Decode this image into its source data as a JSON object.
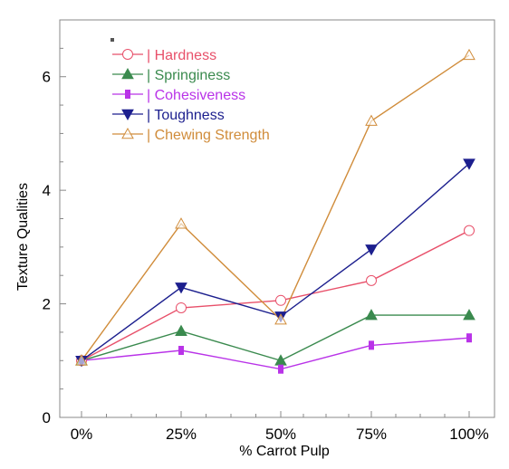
{
  "chart_data": {
    "type": "line",
    "categories": [
      "0%",
      "25%",
      "50%",
      "75%",
      "100%"
    ],
    "xlabel": "% Carrot Pulp",
    "ylabel": "Texture Qualities",
    "ylim": [
      0,
      7.0
    ],
    "yticks": [
      0,
      2,
      4,
      6
    ],
    "grid": false,
    "legend_position": "top-left",
    "series": [
      {
        "name": "| Hardness",
        "values": [
          1.0,
          1.93,
          2.06,
          2.41,
          3.29
        ],
        "color": "#e8506a",
        "marker": "open-circle"
      },
      {
        "name": "| Springiness",
        "values": [
          1.0,
          1.52,
          1.0,
          1.8,
          1.8
        ],
        "color": "#3a8a4e",
        "marker": "filled-triangle-up"
      },
      {
        "name": "| Cohesiveness",
        "values": [
          1.0,
          1.18,
          0.85,
          1.27,
          1.4
        ],
        "color": "#b933e8",
        "marker": "filled-square"
      },
      {
        "name": "| Toughness",
        "values": [
          1.0,
          2.29,
          1.78,
          2.96,
          4.47
        ],
        "color": "#1c1f8e",
        "marker": "filled-triangle-down"
      },
      {
        "name": "| Chewing Strength",
        "values": [
          1.0,
          3.41,
          1.72,
          5.22,
          6.38
        ],
        "color": "#d08c3a",
        "marker": "open-triangle-up"
      }
    ]
  }
}
